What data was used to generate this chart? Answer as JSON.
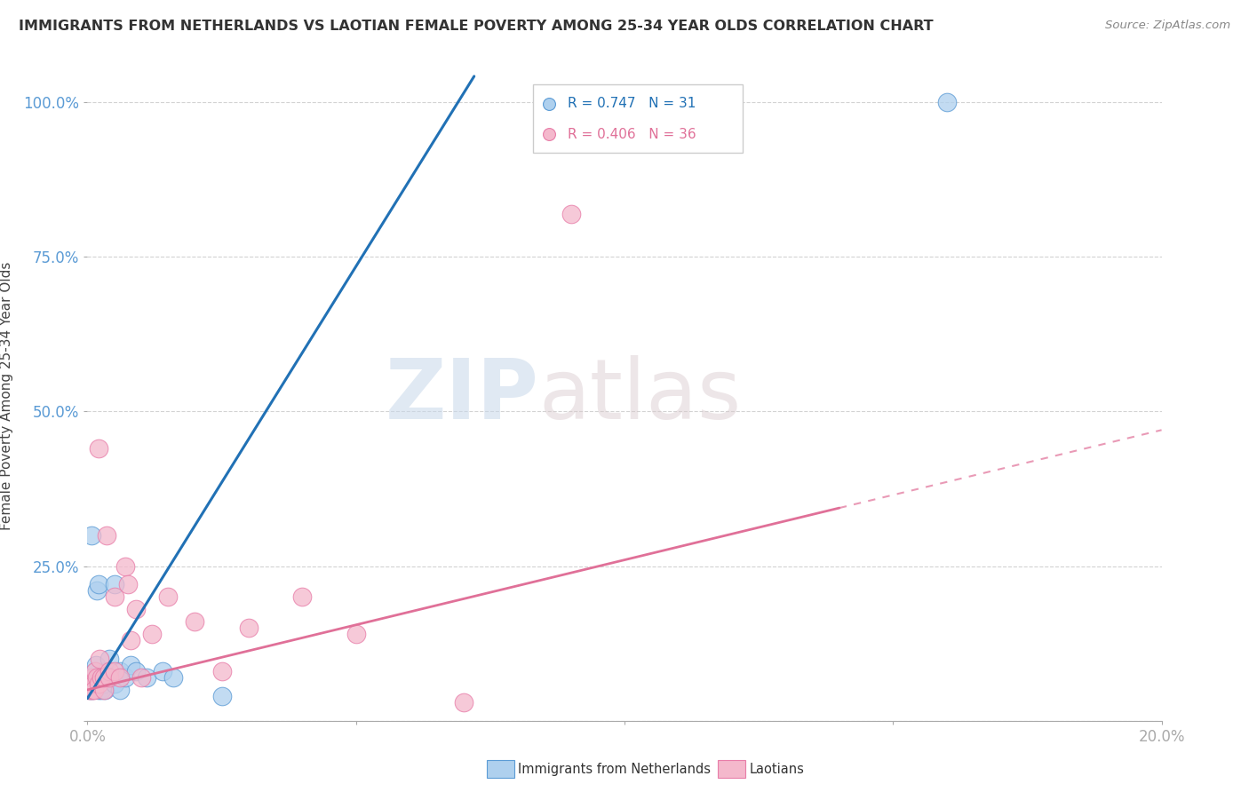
{
  "title": "IMMIGRANTS FROM NETHERLANDS VS LAOTIAN FEMALE POVERTY AMONG 25-34 YEAR OLDS CORRELATION CHART",
  "source": "Source: ZipAtlas.com",
  "ylabel": "Female Poverty Among 25-34 Year Olds",
  "legend_labels": [
    "Immigrants from Netherlands",
    "Laotians"
  ],
  "blue_R": "R = 0.747",
  "blue_N": "N = 31",
  "pink_R": "R = 0.406",
  "pink_N": "N = 36",
  "blue_color": "#aed0ee",
  "pink_color": "#f4b8cc",
  "blue_edge_color": "#5b9bd5",
  "pink_edge_color": "#e87da8",
  "blue_line_color": "#2171b5",
  "pink_line_color": "#e07098",
  "watermark_color": "#dce9f5",
  "axis_label_color": "#5b9bd5",
  "title_color": "#333333",
  "source_color": "#888888",
  "blue_points_x": [
    0.0004,
    0.0007,
    0.001,
    0.0012,
    0.0013,
    0.0015,
    0.0016,
    0.0018,
    0.002,
    0.002,
    0.0022,
    0.0025,
    0.003,
    0.003,
    0.0032,
    0.0035,
    0.0038,
    0.004,
    0.004,
    0.005,
    0.005,
    0.006,
    0.006,
    0.007,
    0.008,
    0.009,
    0.011,
    0.014,
    0.016,
    0.025,
    0.16
  ],
  "blue_points_y": [
    0.05,
    0.3,
    0.05,
    0.07,
    0.06,
    0.08,
    0.09,
    0.21,
    0.05,
    0.22,
    0.07,
    0.05,
    0.06,
    0.07,
    0.05,
    0.08,
    0.07,
    0.1,
    0.07,
    0.06,
    0.22,
    0.05,
    0.08,
    0.07,
    0.09,
    0.08,
    0.07,
    0.08,
    0.07,
    0.04,
    1.0
  ],
  "pink_points_x": [
    0.0003,
    0.0005,
    0.0006,
    0.0008,
    0.001,
    0.001,
    0.0012,
    0.0013,
    0.0015,
    0.0017,
    0.002,
    0.002,
    0.0022,
    0.0025,
    0.003,
    0.003,
    0.0035,
    0.004,
    0.004,
    0.005,
    0.005,
    0.006,
    0.007,
    0.0075,
    0.008,
    0.009,
    0.01,
    0.012,
    0.015,
    0.02,
    0.025,
    0.03,
    0.04,
    0.05,
    0.07,
    0.09
  ],
  "pink_points_y": [
    0.05,
    0.06,
    0.05,
    0.06,
    0.05,
    0.07,
    0.06,
    0.05,
    0.08,
    0.07,
    0.06,
    0.44,
    0.1,
    0.07,
    0.05,
    0.07,
    0.3,
    0.08,
    0.07,
    0.2,
    0.08,
    0.07,
    0.25,
    0.22,
    0.13,
    0.18,
    0.07,
    0.14,
    0.2,
    0.16,
    0.08,
    0.15,
    0.2,
    0.14,
    0.03,
    0.82
  ],
  "xlim": [
    0.0,
    0.2
  ],
  "ylim": [
    0.0,
    1.05
  ],
  "xticks": [
    0.0,
    0.05,
    0.1,
    0.15,
    0.2
  ],
  "yticks": [
    0.0,
    0.25,
    0.5,
    0.75,
    1.0
  ],
  "xticklabels": [
    "0.0%",
    "",
    "",
    "",
    "20.0%"
  ],
  "yticklabels": [
    "",
    "25.0%",
    "50.0%",
    "75.0%",
    "100.0%"
  ]
}
